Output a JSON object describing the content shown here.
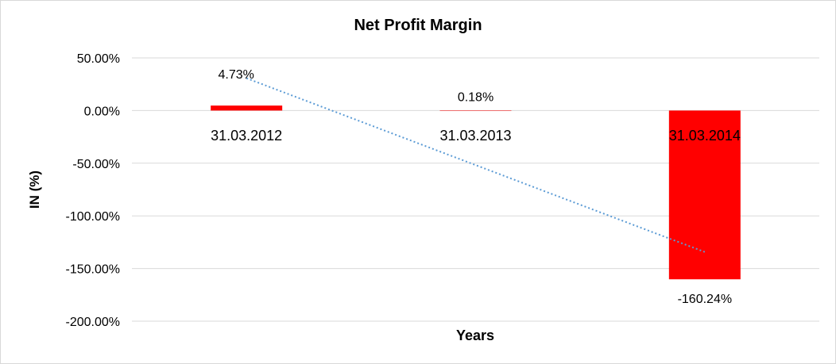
{
  "chart_data": {
    "type": "bar",
    "title": "Net Profit Margin",
    "xlabel": "Years",
    "ylabel": "IN (%)",
    "categories": [
      "31.03.2012",
      "31.03.2013",
      "31.03.2014"
    ],
    "values": [
      4.73,
      0.18,
      -160.24
    ],
    "data_labels": [
      "4.73%",
      "0.18%",
      "-160.24%"
    ],
    "ylim": [
      -200,
      50
    ],
    "yticks": [
      50,
      0,
      -50,
      -100,
      -150,
      -200
    ],
    "ytick_labels": [
      "50.00%",
      "0.00%",
      "-50.00%",
      "-100.00%",
      "-150.00%",
      "-200.00%"
    ],
    "grid": true,
    "trendline": "linear, dotted",
    "colors": {
      "bar": "#ff0000",
      "trendline": "#5b9bd5",
      "grid": "#d9d9d9"
    }
  }
}
